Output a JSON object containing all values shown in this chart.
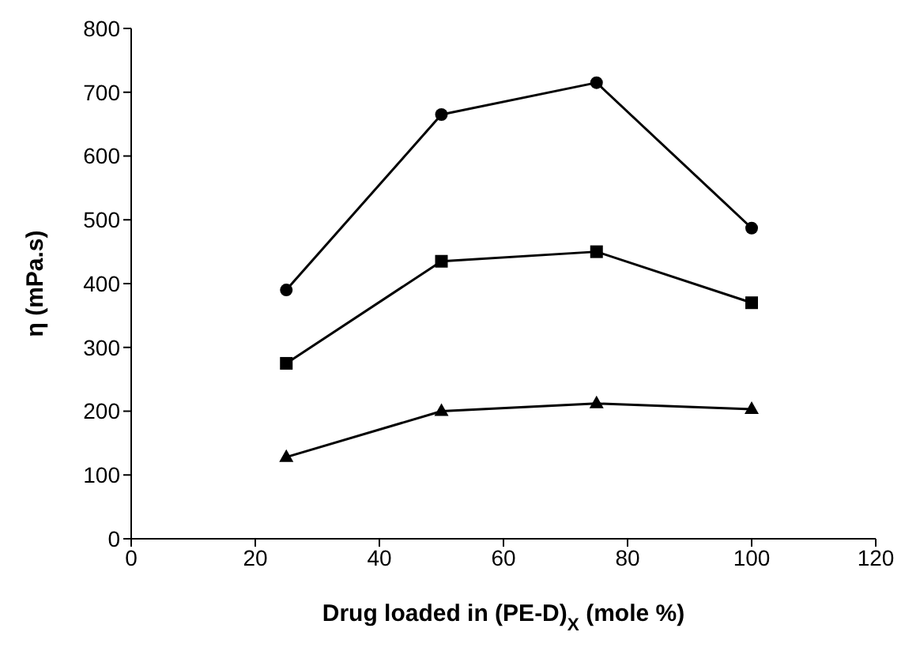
{
  "chart_data": {
    "type": "line",
    "xlabel": "Drug loaded in (PE-D)$_{X}$ (mole %)",
    "ylabel": "η (mPa.s)",
    "x": [
      25,
      50,
      75,
      100
    ],
    "series": [
      {
        "color": "#000000",
        "marker": "circle",
        "values": [
          390,
          665,
          715,
          487
        ]
      },
      {
        "color": "#000000",
        "marker": "square",
        "values": [
          275,
          435,
          450,
          370
        ]
      },
      {
        "color": "#000000",
        "marker": "triangle",
        "values": [
          128,
          200,
          212,
          203
        ]
      }
    ],
    "xlim": [
      0,
      120
    ],
    "xticks": [
      0,
      20,
      40,
      60,
      80,
      100,
      120
    ],
    "ylim": [
      0,
      800
    ],
    "yticks": [
      0,
      100,
      200,
      300,
      400,
      500,
      600,
      700,
      800
    ],
    "grid": false,
    "legend": false,
    "line_style": "solid"
  }
}
